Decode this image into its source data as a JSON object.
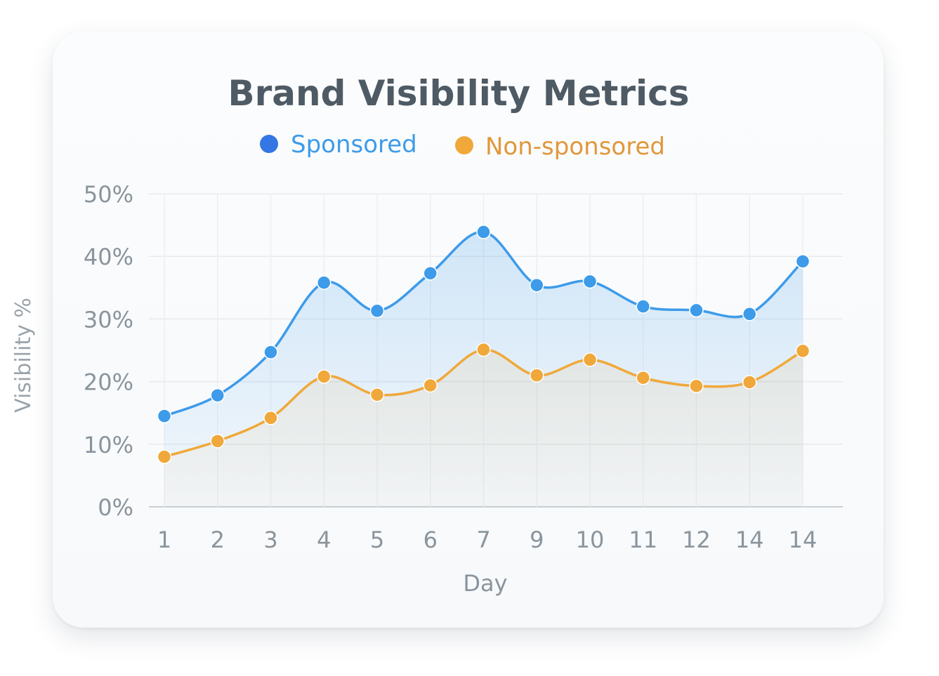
{
  "chart_data": {
    "type": "line",
    "title": "Brand Visibility Metrics",
    "xlabel": "Day",
    "ylabel": "Visibility %",
    "categories": [
      "1",
      "2",
      "3",
      "4",
      "5",
      "6",
      "7",
      "9",
      "10",
      "11",
      "12",
      "14",
      "14"
    ],
    "ylim": [
      0,
      50
    ],
    "yticks": [
      "0%",
      "10%",
      "20%",
      "30%",
      "40%",
      "50%"
    ],
    "grid": true,
    "legend": "top-center",
    "series": [
      {
        "name": "Sponsored",
        "color": "#3d9be9",
        "values": [
          14.5,
          17.8,
          24.7,
          35.8,
          31.3,
          37.3,
          43.9,
          35.4,
          36.0,
          32.0,
          31.4,
          30.8,
          39.2
        ]
      },
      {
        "name": "Non-sponsored",
        "color": "#f0a83a",
        "values": [
          8.0,
          10.5,
          14.2,
          20.8,
          17.9,
          19.4,
          25.1,
          21.0,
          23.5,
          20.6,
          19.3,
          19.9,
          24.9
        ]
      }
    ]
  }
}
